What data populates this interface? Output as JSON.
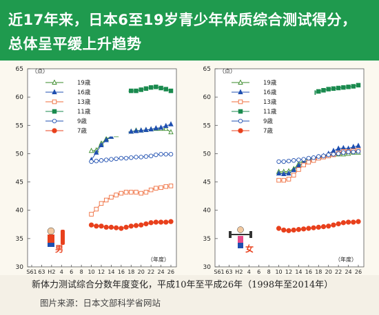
{
  "header": {
    "line1": "近17年来，日本6至19岁青少年体质综合测试得分，",
    "line2": "总体呈平缓上升趋势"
  },
  "caption": "新体力测试综合分数年度变化，平成10年至平成26年（1998年至2014年）",
  "source": "图片来源：日本文部科学省网站",
  "colors": {
    "header_bg": "#1f9a4e",
    "age19": "#3a8a2a",
    "age16": "#1f4fb0",
    "age13": "#ef6b3a",
    "age11": "#1a8a4e",
    "age9": "#1f4fb0",
    "age7": "#e8401c"
  },
  "chart_data": [
    {
      "type": "line",
      "panel_label": "男",
      "unit_label": "（点）",
      "xlabel": "（年度）",
      "x_tick_labels": [
        "S61",
        "63",
        "H2",
        "4",
        "6",
        "8",
        "10",
        "12",
        "14",
        "16",
        "18",
        "20",
        "22",
        "24",
        "26"
      ],
      "ylim": [
        30,
        65
      ],
      "y_ticks": [
        30,
        35,
        40,
        45,
        50,
        55,
        60,
        65
      ],
      "x_data_range": [
        10,
        26
      ],
      "x": [
        10,
        11,
        12,
        13,
        14,
        15,
        16,
        17,
        18,
        19,
        20,
        21,
        22,
        23,
        24,
        25,
        26
      ],
      "series": [
        {
          "name": "19歳",
          "marker": "triangle-open",
          "values": [
            50.5,
            50.6,
            51.8,
            52.6,
            53.0,
            53.3,
            53.6,
            53.8,
            53.9,
            54.1,
            54.1,
            54.2,
            54.3,
            54.4,
            54.4,
            54.4,
            53.8
          ]
        },
        {
          "name": "16歳",
          "marker": "triangle-filled",
          "values": [
            48.9,
            50.2,
            51.5,
            52.4,
            53.0,
            53.4,
            53.6,
            53.7,
            53.9,
            54.0,
            54.1,
            54.2,
            54.3,
            54.5,
            54.6,
            54.9,
            55.2
          ]
        },
        {
          "name": "13歳",
          "marker": "square-open",
          "values": [
            39.3,
            40.2,
            41.2,
            41.8,
            42.3,
            42.7,
            43.0,
            43.2,
            43.2,
            43.2,
            43.0,
            43.2,
            43.6,
            43.9,
            44.0,
            44.2,
            44.3
          ]
        },
        {
          "name": "11歳",
          "marker": "square-filled",
          "values": [
            59.6,
            59.9,
            60.2,
            60.5,
            60.7,
            60.9,
            61.0,
            61.0,
            61.1,
            61.1,
            61.3,
            61.5,
            61.7,
            61.8,
            61.6,
            61.4,
            61.1
          ]
        },
        {
          "name": "9歳",
          "marker": "circle-open",
          "values": [
            48.6,
            48.7,
            48.8,
            48.9,
            49.0,
            49.1,
            49.2,
            49.2,
            49.3,
            49.4,
            49.4,
            49.5,
            49.6,
            49.8,
            49.9,
            49.9,
            49.9
          ]
        },
        {
          "name": "7歳",
          "marker": "circle-filled",
          "values": [
            37.4,
            37.2,
            37.2,
            37.0,
            37.0,
            36.9,
            36.8,
            37.0,
            37.2,
            37.3,
            37.4,
            37.6,
            37.8,
            37.9,
            37.9,
            37.9,
            38.0
          ]
        }
      ]
    },
    {
      "type": "line",
      "panel_label": "女",
      "unit_label": "（点）",
      "xlabel": "（年度）",
      "x_tick_labels": [
        "S61",
        "63",
        "H2",
        "4",
        "6",
        "8",
        "10",
        "12",
        "14",
        "16",
        "18",
        "20",
        "22",
        "24",
        "26"
      ],
      "ylim": [
        30,
        65
      ],
      "y_ticks": [
        30,
        35,
        40,
        45,
        50,
        55,
        60,
        65
      ],
      "x_data_range": [
        10,
        26
      ],
      "x": [
        10,
        11,
        12,
        13,
        14,
        15,
        16,
        17,
        18,
        19,
        20,
        21,
        22,
        23,
        24,
        25,
        26
      ],
      "series": [
        {
          "name": "19歳",
          "marker": "triangle-open",
          "values": [
            46.8,
            46.8,
            46.9,
            47.3,
            48.2,
            48.8,
            49.0,
            49.2,
            49.3,
            49.5,
            49.7,
            49.8,
            49.9,
            49.9,
            50.0,
            50.2,
            50.2
          ]
        },
        {
          "name": "16歳",
          "marker": "triangle-filled",
          "values": [
            46.5,
            46.4,
            46.5,
            47.1,
            47.9,
            48.4,
            48.8,
            49.1,
            49.4,
            49.6,
            50.0,
            50.5,
            50.9,
            51.0,
            50.9,
            51.2,
            51.4
          ]
        },
        {
          "name": "13歳",
          "marker": "square-open",
          "values": [
            45.3,
            45.3,
            45.5,
            46.2,
            47.2,
            48.0,
            48.5,
            48.8,
            49.2,
            49.4,
            49.6,
            49.8,
            50.1,
            50.4,
            50.4,
            50.5,
            50.6
          ]
        },
        {
          "name": "11歳",
          "marker": "square-filled",
          "values": [
            58.6,
            58.6,
            59.0,
            59.6,
            59.9,
            60.3,
            60.6,
            60.8,
            61.0,
            61.2,
            61.4,
            61.5,
            61.6,
            61.7,
            61.8,
            61.9,
            62.1
          ]
        },
        {
          "name": "9歳",
          "marker": "circle-open",
          "values": [
            48.6,
            48.6,
            48.7,
            48.8,
            48.9,
            49.0,
            49.2,
            49.3,
            49.5,
            49.6,
            49.8,
            49.9,
            50.0,
            50.2,
            50.3,
            50.3,
            50.4
          ]
        },
        {
          "name": "7歳",
          "marker": "circle-filled",
          "values": [
            36.8,
            36.5,
            36.4,
            36.5,
            36.6,
            36.7,
            36.8,
            36.9,
            37.0,
            37.1,
            37.2,
            37.4,
            37.6,
            37.8,
            37.9,
            37.9,
            38.0
          ]
        }
      ]
    }
  ]
}
